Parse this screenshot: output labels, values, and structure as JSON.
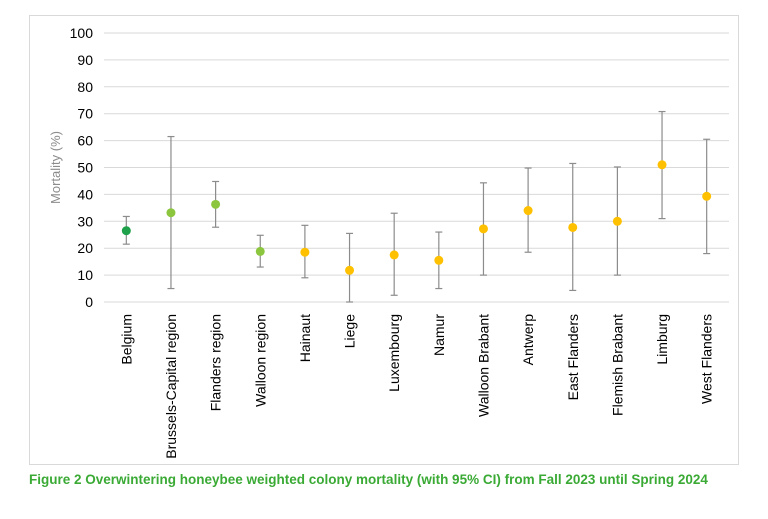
{
  "chart_data": {
    "type": "scatter",
    "title": "",
    "xlabel": "",
    "ylabel": "Mortality (%)",
    "ylim": [
      0,
      100
    ],
    "yticks": [
      0,
      10,
      20,
      30,
      40,
      50,
      60,
      70,
      80,
      90,
      100
    ],
    "grid": true,
    "categories": [
      "Belgium",
      "Brussels-Capital region",
      "Flanders region",
      "Walloon region",
      "Hainaut",
      "Liege",
      "Luxembourg",
      "Namur",
      "Walloon Brabant",
      "Antwerp",
      "East Flanders",
      "Flemish Brabant",
      "Limburg",
      "West Flanders"
    ],
    "values": [
      26.5,
      33.2,
      36.3,
      18.8,
      18.5,
      11.8,
      17.5,
      15.5,
      27.2,
      34.0,
      27.7,
      30.0,
      51.0,
      39.3
    ],
    "ci_lower": [
      21.5,
      5.0,
      27.8,
      13.0,
      9.0,
      0.0,
      2.5,
      5.0,
      10.0,
      18.5,
      4.3,
      10.0,
      31.0,
      18.0
    ],
    "ci_upper": [
      31.8,
      61.5,
      44.8,
      24.8,
      28.5,
      25.5,
      33.0,
      26.0,
      44.3,
      49.8,
      51.5,
      50.2,
      70.8,
      60.5
    ],
    "point_colors": [
      "#1fa04a",
      "#8cc63f",
      "#8cc63f",
      "#8cc63f",
      "#ffc000",
      "#ffc000",
      "#ffc000",
      "#ffc000",
      "#ffc000",
      "#ffc000",
      "#ffc000",
      "#ffc000",
      "#ffc000",
      "#ffc000"
    ],
    "errorbar_color": "#8c8c8c",
    "gridline_color": "#d9d9d9"
  },
  "caption": "Figure 2 Overwintering honeybee weighted colony mortality (with 95% CI) from Fall 2023 until Spring 2024",
  "colors": {
    "caption": "#3aaa35",
    "axis_text": "#000000",
    "ylabel_text": "#8c8c8c"
  }
}
